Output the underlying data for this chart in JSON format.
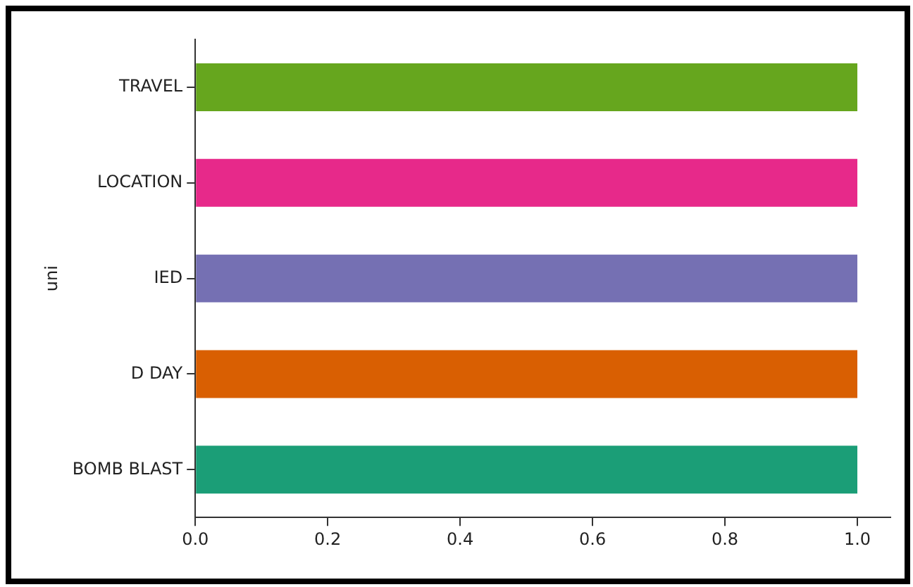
{
  "chart_data": {
    "type": "bar",
    "orientation": "horizontal",
    "ylabel": "uni",
    "categories": [
      "TRAVEL",
      "LOCATION",
      "IED",
      "D DAY",
      "BOMB BLAST"
    ],
    "values": [
      1.0,
      1.0,
      1.0,
      1.0,
      1.0
    ],
    "colors": [
      "#66a61e",
      "#e7298a",
      "#7570b3",
      "#d95f02",
      "#1b9e77"
    ],
    "xlim": [
      0,
      1.05
    ],
    "xticks": [
      {
        "value": 0,
        "label": "0.0"
      },
      0.2,
      0.4,
      0.6,
      0.8,
      {
        "value": 1,
        "label": "1.0"
      }
    ],
    "grid": false,
    "legend": false
  }
}
